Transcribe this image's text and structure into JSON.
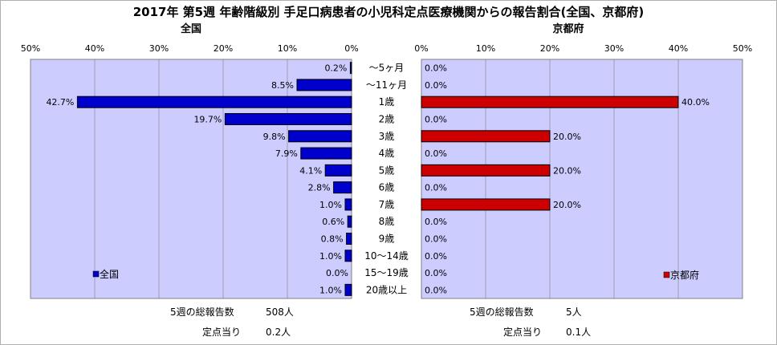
{
  "title": "2017年 第5週 年齢階級別 手足口病患者の小児科定点医療機関からの報告割合(全国、京都府)",
  "chart_data": [
    {
      "type": "bar",
      "orientation": "horizontal",
      "direction": "right-to-left",
      "title": "全国",
      "categories": [
        "～5ヶ月",
        "～11ヶ月",
        "1歳",
        "2歳",
        "3歳",
        "4歳",
        "5歳",
        "6歳",
        "7歳",
        "8歳",
        "9歳",
        "10～14歳",
        "15～19歳",
        "20歳以上"
      ],
      "series": [
        {
          "name": "全国",
          "values": [
            0.2,
            8.5,
            42.7,
            19.7,
            9.8,
            7.9,
            4.1,
            2.8,
            1.0,
            0.6,
            0.8,
            1.0,
            0.0,
            1.0
          ]
        }
      ],
      "value_labels": [
        "0.2%",
        "8.5%",
        "42.7%",
        "19.7%",
        "9.8%",
        "7.9%",
        "4.1%",
        "2.8%",
        "1.0%",
        "0.6%",
        "0.8%",
        "1.0%",
        "0.0%",
        "1.0%"
      ],
      "xlim": [
        0,
        50
      ],
      "ticks": [
        "50%",
        "40%",
        "30%",
        "20%",
        "10%",
        "0%"
      ],
      "bar_color": "#0000cc",
      "plot_bg": "#ccccff",
      "grid": true,
      "legend": "bottom-left"
    },
    {
      "type": "bar",
      "orientation": "horizontal",
      "title": "京都府",
      "categories": [
        "～5ヶ月",
        "～11ヶ月",
        "1歳",
        "2歳",
        "3歳",
        "4歳",
        "5歳",
        "6歳",
        "7歳",
        "8歳",
        "9歳",
        "10～14歳",
        "15～19歳",
        "20歳以上"
      ],
      "series": [
        {
          "name": "京都府",
          "values": [
            0.0,
            0.0,
            40.0,
            0.0,
            20.0,
            0.0,
            20.0,
            0.0,
            20.0,
            0.0,
            0.0,
            0.0,
            0.0,
            0.0
          ]
        }
      ],
      "value_labels": [
        "0.0%",
        "0.0%",
        "40.0%",
        "0.0%",
        "20.0%",
        "0.0%",
        "20.0%",
        "0.0%",
        "20.0%",
        "0.0%",
        "0.0%",
        "0.0%",
        "0.0%",
        "0.0%"
      ],
      "xlim": [
        0,
        50
      ],
      "ticks": [
        "0%",
        "10%",
        "20%",
        "30%",
        "40%",
        "50%"
      ],
      "bar_color": "#cc0000",
      "plot_bg": "#ccccff",
      "grid": true,
      "legend": "bottom-right"
    }
  ],
  "footer": {
    "national": {
      "reports_label": "5週の総報告数",
      "reports_value": "508人",
      "per_site_label": "定点当り",
      "per_site_value": "0.2人"
    },
    "kyoto": {
      "reports_label": "5週の総報告数",
      "reports_value": "5人",
      "per_site_label": "定点当り",
      "per_site_value": "0.1人"
    }
  }
}
